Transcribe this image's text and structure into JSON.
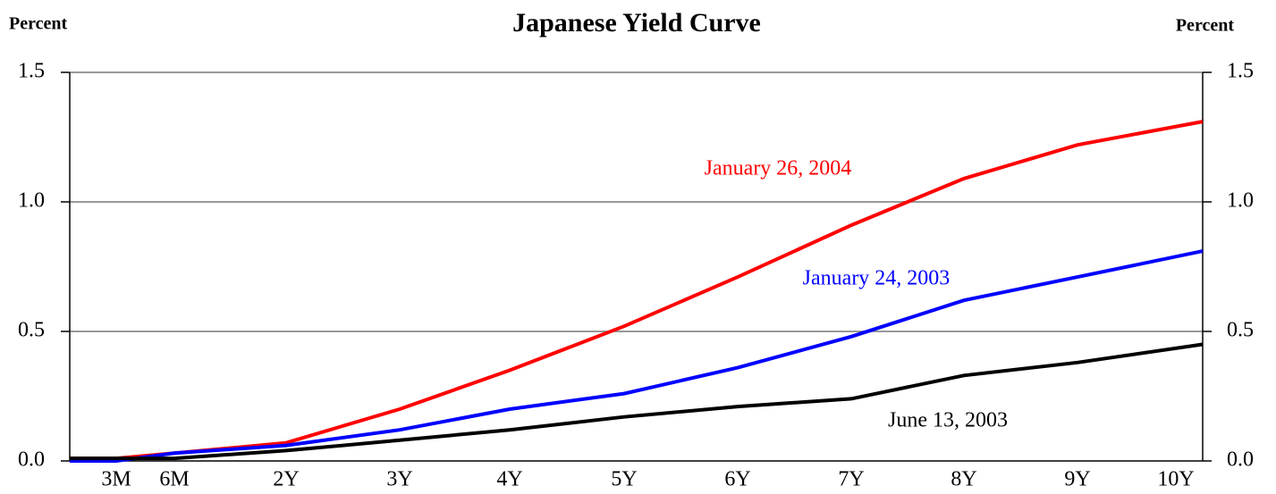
{
  "chart_data": {
    "type": "line",
    "title": "Japanese Yield Curve",
    "y_label": "Percent",
    "y2_label": "Percent",
    "categories": [
      null,
      "3M",
      "6M",
      "2Y",
      "3Y",
      "4Y",
      "5Y",
      "6Y",
      "7Y",
      "8Y",
      "9Y",
      "10Y"
    ],
    "series": [
      {
        "name": "January 26, 2004",
        "color": "#ff0000",
        "values": [
          0.01,
          0.01,
          0.03,
          0.07,
          0.2,
          0.35,
          0.52,
          0.71,
          0.91,
          1.09,
          1.22,
          1.31
        ]
      },
      {
        "name": "January 24, 2003",
        "color": "#0000ff",
        "values": [
          0.0,
          0.0,
          0.03,
          0.06,
          0.12,
          0.2,
          0.26,
          0.36,
          0.48,
          0.62,
          0.71,
          0.81
        ]
      },
      {
        "name": "June 13, 2003",
        "color": "#000000",
        "values": [
          0.01,
          0.01,
          0.01,
          0.04,
          0.08,
          0.12,
          0.17,
          0.21,
          0.24,
          0.33,
          0.38,
          0.45
        ]
      }
    ],
    "ylim": [
      0,
      1.5
    ],
    "yticks": [
      {
        "value": 0,
        "label": "0.0"
      },
      0.5,
      {
        "value": 1,
        "label": "1.0"
      },
      1.5
    ],
    "y2lim": [
      0,
      1.5
    ],
    "y2ticks": [
      {
        "value": 0,
        "label": "0.0"
      },
      0.5,
      {
        "value": 1,
        "label": "1.0"
      },
      1.5
    ],
    "grid": true
  }
}
